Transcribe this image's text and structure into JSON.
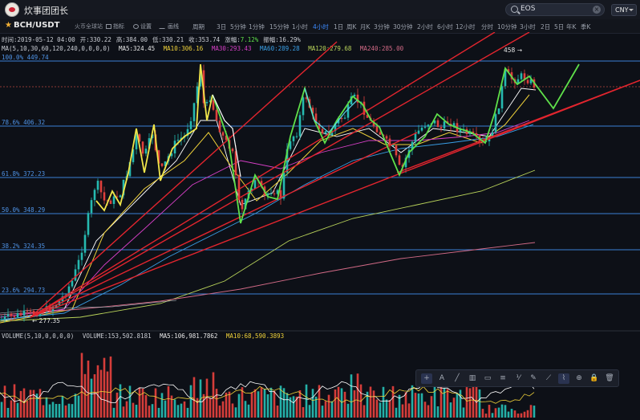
{
  "app": {
    "title": "炊事团团长",
    "search_value": "EOS",
    "currency": "CNY"
  },
  "toolbar": {
    "pair": "BCH/USDT",
    "exchange": "火币全球站",
    "indicator_label": "指标",
    "settings_label": "设置",
    "draw_label": "画线",
    "timeframes": [
      "周期",
      "3日",
      "5分钟",
      "1分钟",
      "15分钟",
      "1小时",
      "4小时",
      "1日",
      "周K",
      "月K",
      "3分钟",
      "30分钟",
      "2小时",
      "6小时",
      "12小时",
      "分时",
      "10分钟",
      "3小时",
      "2日",
      "5日",
      "年K",
      "季K"
    ],
    "active_timeframe": "4小时"
  },
  "ohlc": {
    "time": "时间:2019-05-12 04:00",
    "open": "开:330.22",
    "high": "高:384.00",
    "low": "低:330.21",
    "close": "收:353.74",
    "change_label": "涨幅:",
    "change_value": "7.12%",
    "amplitude": "振幅:16.29%"
  },
  "ma_info": {
    "params": "MA(5,10,30,60,120,240,0,0,0,0)",
    "ma5": "MA5:324.45",
    "ma10": "MA10:306.16",
    "ma30": "MA30:293.43",
    "ma60": "MA60:289.28",
    "ma120": "MA120:279.68",
    "ma240": "MA240:285.00"
  },
  "volume_info": {
    "params": "VOLUME(5,10,0,0,0,0)",
    "volume": "VOLUME:153,502.8181",
    "ma5": "MA5:106,981.7862",
    "ma10": "MA10:68,590.3893"
  },
  "fib_levels": [
    {
      "label": "100.0% 449.74"
    },
    {
      "label": "78.6% 406.32"
    },
    {
      "label": "61.8% 372.23"
    },
    {
      "label": "50.0% 348.29"
    },
    {
      "label": "38.2% 324.35"
    },
    {
      "label": "23.6% 294.73"
    }
  ],
  "price_markers": {
    "high": "458",
    "low": "277.35"
  },
  "colors": {
    "up": "#e0403c",
    "down": "#26b9b0",
    "ma5": "#ffffff",
    "ma10": "#f0d23a",
    "ma30": "#d63fc6",
    "ma60": "#3aa0e8",
    "ma120": "#b9d35a",
    "ma240": "#d26a86",
    "fib": "#3c7fd6",
    "trend": "#e2252e",
    "wave_yellow": "#f1e64a",
    "wave_green": "#5fe04a",
    "accent": "#3d8bff"
  },
  "draw_tools": [
    "crosshair-icon",
    "text-tool-icon",
    "brush-icon",
    "ruler-icon",
    "channel-icon",
    "rectangle-icon",
    "horizontal-line-icon",
    "fib-tool-icon",
    "pencil-icon",
    "magnet-icon",
    "lock-link-icon",
    "lock-icon",
    "trash-icon"
  ]
}
